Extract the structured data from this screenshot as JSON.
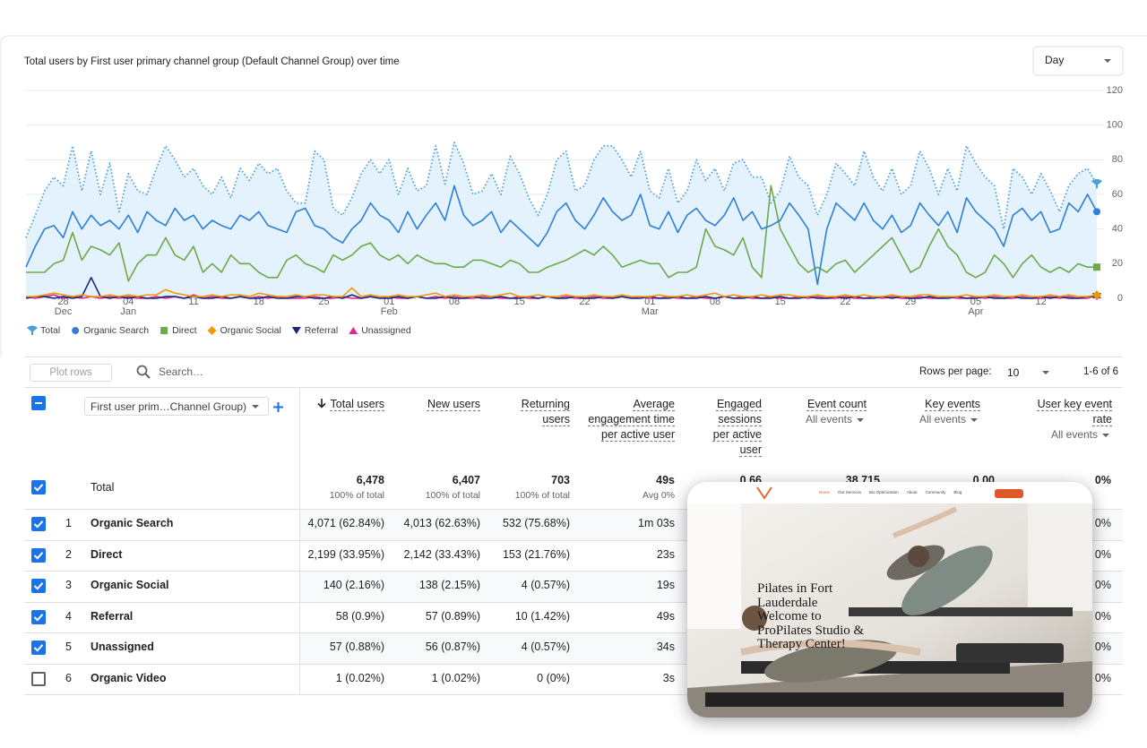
{
  "chart_data": {
    "type": "line",
    "title": "Total users by First user primary channel group (Default Channel Group) over time",
    "ylim": [
      0,
      120
    ],
    "yticks": [
      0,
      20,
      40,
      60,
      80,
      100,
      120
    ],
    "grid": true,
    "legend": "bottom-left",
    "categories": [
      null,
      null,
      null,
      null,
      {
        "day": "28",
        "month": "Dec"
      },
      null,
      null,
      null,
      null,
      null,
      null,
      {
        "day": "04",
        "month": "Jan"
      },
      null,
      null,
      null,
      null,
      null,
      null,
      {
        "day": "11"
      },
      null,
      null,
      null,
      null,
      null,
      null,
      {
        "day": "18"
      },
      null,
      null,
      null,
      null,
      null,
      null,
      {
        "day": "25"
      },
      null,
      null,
      null,
      null,
      null,
      null,
      {
        "day": "01",
        "month": "Feb"
      },
      null,
      null,
      null,
      null,
      null,
      null,
      {
        "day": "08"
      },
      null,
      null,
      null,
      null,
      null,
      null,
      {
        "day": "15"
      },
      null,
      null,
      null,
      null,
      null,
      null,
      {
        "day": "22"
      },
      null,
      null,
      null,
      null,
      null,
      null,
      {
        "day": "01",
        "month": "Mar"
      },
      null,
      null,
      null,
      null,
      null,
      null,
      {
        "day": "08"
      },
      null,
      null,
      null,
      null,
      null,
      null,
      {
        "day": "15"
      },
      null,
      null,
      null,
      null,
      null,
      null,
      {
        "day": "22"
      },
      null,
      null,
      null,
      null,
      null,
      null,
      {
        "day": "29"
      },
      null,
      null,
      null,
      null,
      null,
      null,
      {
        "day": "05",
        "month": "Apr"
      },
      null,
      null,
      null,
      null,
      null,
      null,
      {
        "day": "12"
      },
      null,
      null,
      null,
      null,
      null,
      null
    ],
    "series": [
      {
        "name": "Total",
        "color": "#4a9fd8",
        "fill": "#e3f2fc",
        "line_style": "dotted",
        "marker": "pin",
        "values": [
          35,
          48,
          62,
          70,
          65,
          88,
          62,
          85,
          60,
          78,
          50,
          72,
          62,
          60,
          75,
          88,
          80,
          70,
          75,
          65,
          60,
          70,
          58,
          75,
          68,
          78,
          72,
          75,
          62,
          55,
          55,
          85,
          80,
          52,
          48,
          58,
          72,
          80,
          72,
          80,
          60,
          75,
          62,
          65,
          88,
          66,
          90,
          78,
          60,
          62,
          72,
          60,
          82,
          72,
          58,
          48,
          60,
          80,
          85,
          62,
          65,
          80,
          88,
          88,
          80,
          70,
          85,
          62,
          58,
          75,
          55,
          62,
          80,
          68,
          75,
          62,
          78,
          80,
          70,
          70,
          55,
          62,
          82,
          70,
          65,
          48,
          60,
          78,
          72,
          65,
          85,
          70,
          62,
          75,
          60,
          65,
          85,
          75,
          60,
          75,
          62,
          88,
          78,
          70,
          65,
          40,
          75,
          70,
          60,
          72,
          62,
          50,
          65,
          72,
          75,
          66
        ]
      },
      {
        "name": "Organic Search",
        "color": "#2f7fd6",
        "line_style": "solid",
        "marker": "circle",
        "values": [
          18,
          30,
          40,
          42,
          35,
          50,
          40,
          48,
          42,
          45,
          40,
          48,
          38,
          50,
          45,
          42,
          52,
          45,
          48,
          40,
          45,
          42,
          40,
          48,
          45,
          50,
          42,
          40,
          38,
          50,
          52,
          42,
          40,
          35,
          32,
          40,
          45,
          55,
          48,
          45,
          38,
          50,
          40,
          48,
          55,
          45,
          65,
          48,
          42,
          45,
          50,
          38,
          45,
          40,
          35,
          30,
          38,
          50,
          55,
          45,
          40,
          48,
          58,
          50,
          45,
          48,
          60,
          42,
          40,
          50,
          38,
          48,
          52,
          45,
          42,
          48,
          58,
          45,
          50,
          40,
          42,
          45,
          55,
          48,
          40,
          8,
          40,
          55,
          50,
          45,
          55,
          45,
          40,
          48,
          38,
          42,
          55,
          48,
          42,
          50,
          38,
          58,
          50,
          45,
          40,
          30,
          48,
          52,
          45,
          50,
          38,
          40,
          55,
          50,
          60,
          50
        ]
      },
      {
        "name": "Direct",
        "color": "#6fa84b",
        "line_style": "solid",
        "marker": "square",
        "values": [
          15,
          15,
          15,
          20,
          22,
          38,
          22,
          30,
          28,
          25,
          32,
          10,
          20,
          25,
          25,
          35,
          25,
          22,
          30,
          15,
          20,
          15,
          25,
          20,
          20,
          15,
          12,
          12,
          22,
          25,
          20,
          18,
          15,
          25,
          22,
          25,
          30,
          32,
          25,
          22,
          25,
          20,
          25,
          22,
          20,
          20,
          18,
          18,
          22,
          22,
          20,
          18,
          22,
          20,
          15,
          15,
          18,
          20,
          22,
          25,
          28,
          25,
          30,
          25,
          18,
          20,
          22,
          20,
          20,
          12,
          15,
          15,
          18,
          40,
          30,
          28,
          25,
          35,
          18,
          12,
          65,
          40,
          30,
          20,
          15,
          18,
          15,
          20,
          22,
          15,
          20,
          25,
          30,
          35,
          25,
          15,
          18,
          30,
          40,
          30,
          25,
          15,
          12,
          15,
          25,
          20,
          12,
          20,
          25,
          18,
          15,
          18,
          15,
          20,
          18,
          18
        ]
      },
      {
        "name": "Organic Social",
        "color": "#f29900",
        "line_style": "solid",
        "marker": "diamond",
        "values": [
          1,
          1,
          2,
          3,
          2,
          1,
          2,
          1,
          1,
          2,
          1,
          2,
          1,
          2,
          2,
          5,
          3,
          2,
          1,
          1,
          2,
          1,
          2,
          2,
          1,
          3,
          2,
          1,
          1,
          2,
          1,
          2,
          2,
          1,
          1,
          6,
          1,
          2,
          1,
          1,
          2,
          1,
          1,
          2,
          3,
          1,
          2,
          1,
          1,
          2,
          1,
          2,
          3,
          1,
          1,
          2,
          1,
          1,
          2,
          1,
          1,
          2,
          1,
          1,
          2,
          1,
          1,
          1,
          2,
          1,
          1,
          2,
          1,
          2,
          3,
          1,
          2,
          1,
          1,
          2,
          1,
          2,
          2,
          1,
          1,
          2,
          1,
          1,
          2,
          1,
          2,
          1,
          1,
          2,
          1,
          1,
          2,
          2,
          1,
          1,
          1,
          2,
          1,
          1,
          2,
          1,
          1,
          2,
          1,
          1,
          2,
          1,
          2,
          1,
          1,
          2
        ]
      },
      {
        "name": "Referral",
        "color": "#1a237e",
        "line_style": "solid",
        "marker": "triangle-down",
        "values": [
          0,
          1,
          1,
          0,
          1,
          0,
          1,
          12,
          1,
          0,
          1,
          0,
          1,
          0,
          0,
          1,
          1,
          0,
          1,
          0,
          0,
          1,
          0,
          1,
          0,
          0,
          1,
          0,
          0,
          1,
          1,
          0,
          0,
          1,
          0,
          2,
          0,
          1,
          0,
          0,
          1,
          0,
          1,
          0,
          0,
          1,
          0,
          0,
          1,
          0,
          0,
          1,
          0,
          0,
          1,
          0,
          1,
          0,
          0,
          1,
          0,
          0,
          1,
          0,
          1,
          0,
          0,
          1,
          0,
          0,
          1,
          0,
          0,
          1,
          0,
          1,
          0,
          0,
          1,
          0,
          0,
          1,
          0,
          0,
          1,
          0,
          0,
          1,
          0,
          1,
          0,
          0,
          1,
          0,
          1,
          0,
          0,
          1,
          0,
          0,
          1,
          0,
          0,
          1,
          0,
          0,
          1,
          0,
          0,
          1,
          0,
          1,
          0,
          0,
          1,
          1
        ]
      },
      {
        "name": "Unassigned",
        "color": "#e52592",
        "line_style": "solid",
        "marker": "triangle-up",
        "values": [
          1,
          0,
          1,
          2,
          0,
          1,
          0,
          1,
          0,
          1,
          0,
          1,
          0,
          0,
          1,
          0,
          1,
          0,
          2,
          0,
          1,
          0,
          0,
          1,
          0,
          1,
          0,
          1,
          0,
          0,
          0,
          1,
          0,
          0,
          1,
          0,
          0,
          1,
          0,
          1,
          0,
          0,
          1,
          0,
          1,
          0,
          1,
          0,
          0,
          1,
          1,
          0,
          0,
          1,
          0,
          0,
          1,
          0,
          1,
          0,
          0,
          1,
          0,
          0,
          1,
          0,
          1,
          0,
          0,
          1,
          0,
          0,
          1,
          0,
          0,
          1,
          0,
          1,
          0,
          0,
          1,
          0,
          0,
          1,
          0,
          1,
          0,
          0,
          1,
          0,
          0,
          1,
          0,
          1,
          0,
          0,
          1,
          0,
          0,
          1,
          0,
          0,
          1,
          0,
          1,
          0,
          0,
          1,
          0,
          0,
          1,
          0,
          1,
          0,
          0,
          2
        ]
      }
    ]
  },
  "controls": {
    "interval": "Day",
    "plot_rows": "Plot rows",
    "search_placeholder": "Search…",
    "rows_per_page_label": "Rows per page:",
    "rows_per_page": "10",
    "pagination": "1-6 of 6",
    "dimension": "First user prim…Channel Group)"
  },
  "table": {
    "columns": [
      {
        "label": "Total users",
        "sorted": true
      },
      {
        "label": "New users"
      },
      {
        "label": "Returning users"
      },
      {
        "label": "Average engagement time per active user"
      },
      {
        "label": "Engaged sessions per active user"
      },
      {
        "label": "Event count",
        "filter": "All events"
      },
      {
        "label": "Key events",
        "filter": "All events"
      },
      {
        "label": "User key event rate",
        "filter": "All events"
      }
    ],
    "total": {
      "label": "Total",
      "cells": [
        {
          "value": "6,478",
          "sub": "100% of total"
        },
        {
          "value": "6,407",
          "sub": "100% of total"
        },
        {
          "value": "703",
          "sub": "100% of total"
        },
        {
          "value": "49s",
          "sub": "Avg 0%"
        },
        {
          "value": "0.66"
        },
        {
          "value": "38,715"
        },
        {
          "value": "0.00"
        },
        {
          "value": "0%"
        }
      ]
    },
    "rows": [
      {
        "index": "1",
        "name": "Organic Search",
        "checked": true,
        "cells": [
          "4,071 (62.84%)",
          "4,013 (62.63%)",
          "532 (75.68%)",
          "1m 03s"
        ],
        "key_event_rate": "0%"
      },
      {
        "index": "2",
        "name": "Direct",
        "checked": true,
        "cells": [
          "2,199 (33.95%)",
          "2,142 (33.43%)",
          "153 (21.76%)",
          "23s"
        ],
        "key_event_rate": "0%"
      },
      {
        "index": "3",
        "name": "Organic Social",
        "checked": true,
        "cells": [
          "140 (2.16%)",
          "138 (2.15%)",
          "4 (0.57%)",
          "19s"
        ],
        "key_event_rate": "0%"
      },
      {
        "index": "4",
        "name": "Referral",
        "checked": true,
        "cells": [
          "58 (0.9%)",
          "57 (0.89%)",
          "10 (1.42%)",
          "49s"
        ],
        "key_event_rate": "0%"
      },
      {
        "index": "5",
        "name": "Unassigned",
        "checked": true,
        "cells": [
          "57 (0.88%)",
          "56 (0.87%)",
          "4 (0.57%)",
          "34s"
        ],
        "key_event_rate": "0%"
      },
      {
        "index": "6",
        "name": "Organic Video",
        "checked": false,
        "cells": [
          "1 (0.02%)",
          "1 (0.02%)",
          "0 (0%)",
          "3s"
        ],
        "key_event_rate": "0%"
      }
    ]
  },
  "overlay": {
    "nav": [
      "Home",
      "Our Services",
      "Bio Optimization",
      "About",
      "Community",
      "Blog"
    ],
    "headline": [
      "Pilates in Fort Lauderdale",
      "Welcome to ProPilates Studio & Therapy Center!"
    ]
  }
}
